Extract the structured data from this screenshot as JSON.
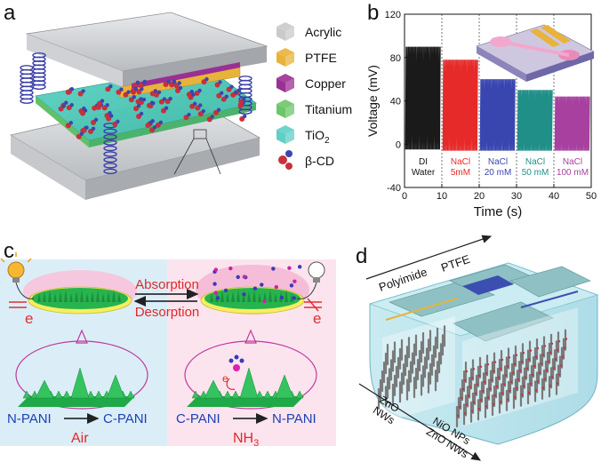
{
  "panel_a": {
    "letter": "a",
    "legend": [
      {
        "label": "Acrylic",
        "color": "#c9cacc"
      },
      {
        "label": "PTFE",
        "color": "#e8b33a"
      },
      {
        "label": "Copper",
        "color": "#9b2f93"
      },
      {
        "label": "Titanium",
        "color": "#6cc66a"
      },
      {
        "label": "TiO",
        "sub": "2",
        "color": "#5fcfc7"
      },
      {
        "label": "β-CD",
        "color": "#c8303a"
      }
    ]
  },
  "panel_b": {
    "letter": "b",
    "chart_data": {
      "type": "line",
      "xlabel": "Time (s)",
      "ylabel": "Voltage (mV)",
      "xlim": [
        0,
        50
      ],
      "ylim": [
        -40,
        120
      ],
      "x_ticks": [
        "0",
        "10",
        "20",
        "30",
        "40",
        "50"
      ],
      "y_ticks": [
        "-40",
        "0",
        "40",
        "80",
        "120"
      ],
      "series": [
        {
          "label_lines": [
            "DI",
            "Water"
          ],
          "x_range": [
            0,
            10
          ],
          "peak": 90,
          "trough": -5,
          "color": "#1a1a1a"
        },
        {
          "label_lines": [
            "NaCl",
            "5mM"
          ],
          "x_range": [
            10,
            20
          ],
          "peak": 78,
          "trough": -6,
          "color": "#e62a2a"
        },
        {
          "label_lines": [
            "NaCl",
            "20 mM"
          ],
          "x_range": [
            20,
            30
          ],
          "peak": 60,
          "trough": -6,
          "color": "#3a46b0"
        },
        {
          "label_lines": [
            "NaCl",
            "50 mM"
          ],
          "x_range": [
            30,
            40
          ],
          "peak": 50,
          "trough": -6,
          "color": "#1f8f88"
        },
        {
          "label_lines": [
            "NaCl",
            "100 mM"
          ],
          "x_range": [
            40,
            50
          ],
          "peak": 44,
          "trough": -6,
          "color": "#a840a0"
        }
      ]
    }
  },
  "panel_c": {
    "letter": "c",
    "arrow_top": "Absorption",
    "arrow_bottom": "Desorption",
    "electron_left": "e",
    "electron_right": "e",
    "electron_center": "e",
    "reaction_left": {
      "from": "N-PANI",
      "to": "C-PANI",
      "condition": "Air"
    },
    "reaction_right": {
      "from": "C-PANI",
      "to": "N-PANI",
      "condition": "NH",
      "condition_sub": "3"
    }
  },
  "panel_d": {
    "letter": "d",
    "top_labels": [
      "Polyimide",
      "PTFE"
    ],
    "bottom_label_1_lines": [
      "ZnO",
      "NWs"
    ],
    "bottom_label_2_lines": [
      "NiO NPs",
      "ZnO NWs"
    ]
  }
}
